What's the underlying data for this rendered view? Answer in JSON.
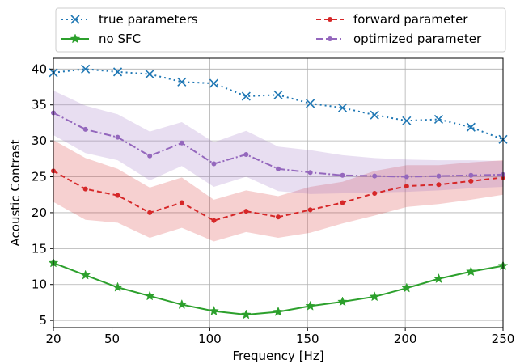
{
  "chart_data": {
    "type": "line",
    "xlabel": "Frequency [Hz]",
    "ylabel": "Acoustic Contrast",
    "xlim": [
      20,
      250
    ],
    "ylim": [
      4,
      41.5
    ],
    "xticks": [
      20,
      50,
      100,
      150,
      200,
      250
    ],
    "yticks": [
      5,
      10,
      15,
      20,
      25,
      30,
      35,
      40
    ],
    "grid": true,
    "legend_position": "top",
    "x": [
      20,
      36.4,
      52.9,
      69.3,
      85.7,
      102.1,
      118.6,
      135,
      151.4,
      167.9,
      184.3,
      200.7,
      217.1,
      233.6,
      250
    ],
    "series": [
      {
        "name": "true parameters",
        "color": "#1f77b4",
        "line_style": "dotted",
        "marker": "x",
        "values": [
          39.5,
          40.0,
          39.6,
          39.3,
          38.2,
          38.0,
          36.2,
          36.4,
          35.2,
          34.6,
          33.6,
          32.8,
          33.0,
          31.9,
          30.2
        ]
      },
      {
        "name": "no SFC",
        "color": "#2ca02c",
        "line_style": "solid",
        "marker": "star",
        "values": [
          13.0,
          11.3,
          9.6,
          8.4,
          7.2,
          6.3,
          5.8,
          6.2,
          7.0,
          7.6,
          8.3,
          9.5,
          10.8,
          11.8,
          12.6
        ]
      },
      {
        "name": "forward parameter",
        "color": "#d62728",
        "line_style": "dashed",
        "marker": "dot",
        "values": [
          25.8,
          23.3,
          22.4,
          20.0,
          21.4,
          18.9,
          20.2,
          19.4,
          20.4,
          21.4,
          22.7,
          23.7,
          23.9,
          24.4,
          24.9
        ],
        "band_lower": [
          21.5,
          19.0,
          18.6,
          16.5,
          17.9,
          16.0,
          17.3,
          16.5,
          17.2,
          18.5,
          19.6,
          20.8,
          21.2,
          21.8,
          22.5
        ],
        "band_upper": [
          30.1,
          27.6,
          26.1,
          23.5,
          24.9,
          21.8,
          23.1,
          22.3,
          23.6,
          24.3,
          25.8,
          26.6,
          26.6,
          27.0,
          27.3
        ]
      },
      {
        "name": "optimized parameter",
        "color": "#9467bd",
        "line_style": "dashdot",
        "marker": "dot",
        "values": [
          33.9,
          31.6,
          30.5,
          27.9,
          29.7,
          26.8,
          28.1,
          26.1,
          25.6,
          25.2,
          25.1,
          25.0,
          25.1,
          25.2,
          25.3
        ],
        "band_lower": [
          30.8,
          28.3,
          27.3,
          24.5,
          26.5,
          23.6,
          25.0,
          23.0,
          22.6,
          22.7,
          22.8,
          22.9,
          23.1,
          23.4,
          23.6
        ],
        "band_upper": [
          37.0,
          34.9,
          33.7,
          31.3,
          32.6,
          29.8,
          31.4,
          29.2,
          28.7,
          28.0,
          27.6,
          27.4,
          27.3,
          27.3,
          27.2
        ]
      }
    ]
  }
}
